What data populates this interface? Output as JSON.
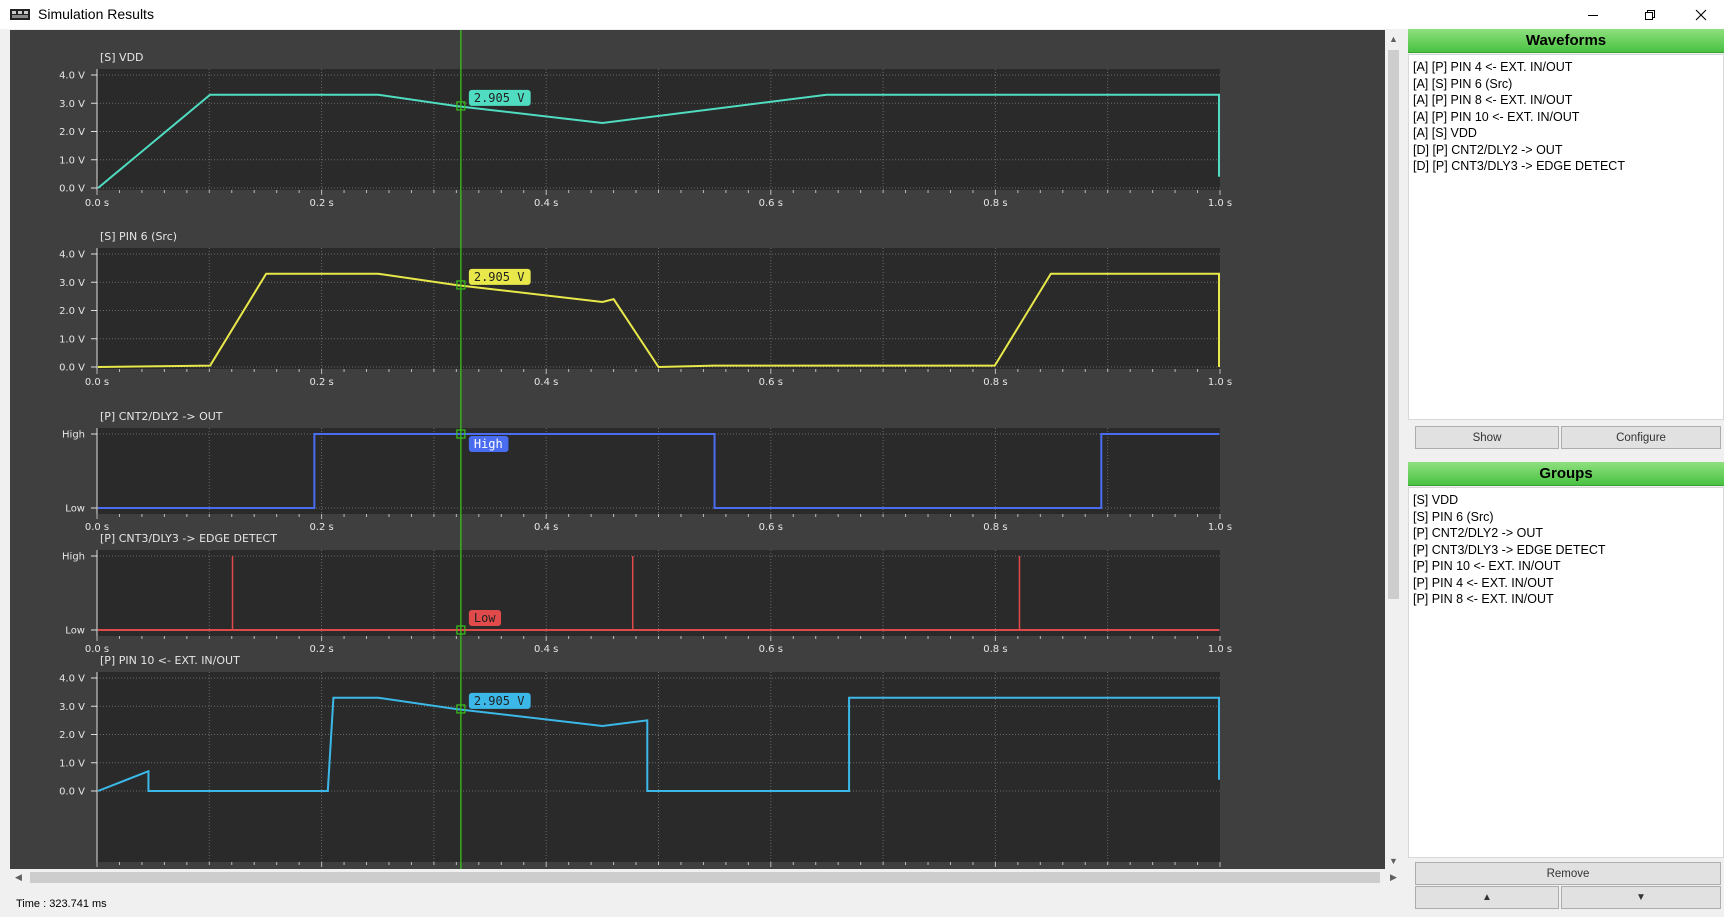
{
  "window": {
    "title": "Simulation Results",
    "icons": [
      "app-icon",
      "minimize-icon",
      "restore-icon",
      "close-icon"
    ]
  },
  "cursor": {
    "time_s": 0.3237,
    "status_label": "Time : 323.741 ms"
  },
  "colors": {
    "plot_bg": "#3f3f3f",
    "graph_bg": "#2a2a2a",
    "cursor": "#39c21a",
    "vdd": "#4fdcc0",
    "pin6": "#e8e84a",
    "cnt2": "#4a6cf0",
    "cnt3": "#e04a4a",
    "pin10": "#3cb8e8"
  },
  "plots": [
    {
      "title": "[S] VDD",
      "type": "analog",
      "color": "#4fdcc0",
      "y_ticks": [
        "4.0 V",
        "3.0 V",
        "2.0 V",
        "1.0 V",
        "0.0 V"
      ],
      "x_ticks": [
        "0.0 s",
        "0.2 s",
        "0.4 s",
        "0.6 s",
        "0.8 s",
        "1.0 s"
      ],
      "cursor_label": "2.905 V",
      "points": [
        [
          0,
          0
        ],
        [
          0.1,
          3.3
        ],
        [
          0.25,
          3.3
        ],
        [
          0.32,
          2.9
        ],
        [
          0.45,
          2.3
        ],
        [
          0.65,
          3.3
        ],
        [
          1.0,
          3.3
        ],
        [
          1.0,
          0.4
        ]
      ]
    },
    {
      "title": "[S] PIN 6 (Src)",
      "type": "analog",
      "color": "#e8e84a",
      "y_ticks": [
        "4.0 V",
        "3.0 V",
        "2.0 V",
        "1.0 V",
        "0.0 V"
      ],
      "x_ticks": [
        "0.0 s",
        "0.2 s",
        "0.4 s",
        "0.6 s",
        "0.8 s",
        "1.0 s"
      ],
      "cursor_label": "2.905 V",
      "points": [
        [
          0,
          0
        ],
        [
          0.1,
          0.05
        ],
        [
          0.15,
          3.3
        ],
        [
          0.25,
          3.3
        ],
        [
          0.32,
          2.9
        ],
        [
          0.45,
          2.3
        ],
        [
          0.46,
          2.4
        ],
        [
          0.5,
          0
        ],
        [
          0.55,
          0.05
        ],
        [
          0.8,
          0.05
        ],
        [
          0.85,
          3.3
        ],
        [
          1.0,
          3.3
        ],
        [
          1.0,
          1.6
        ],
        [
          1.0,
          0
        ]
      ]
    },
    {
      "title": "[P] CNT2/DLY2 -> OUT",
      "type": "digital",
      "color": "#4a6cf0",
      "y_ticks": [
        "High",
        "Low"
      ],
      "x_ticks": [
        "0.0 s",
        "0.2 s",
        "0.4 s",
        "0.6 s",
        "0.8 s",
        "1.0 s"
      ],
      "cursor_label": "High",
      "edges": [
        [
          0,
          0
        ],
        [
          0.193,
          1
        ],
        [
          0.55,
          0
        ],
        [
          0.895,
          1
        ],
        [
          1.0,
          1
        ]
      ]
    },
    {
      "title": "[P] CNT3/DLY3 -> EDGE DETECT",
      "type": "digital",
      "color": "#e04a4a",
      "y_ticks": [
        "High",
        "Low"
      ],
      "x_ticks": [
        "0.0 s",
        "0.2 s",
        "0.4 s",
        "0.6 s",
        "0.8 s",
        "1.0 s"
      ],
      "cursor_label": "Low",
      "spikes": [
        0.12,
        0.477,
        0.822
      ]
    },
    {
      "title": "[P] PIN 10 <- EXT. IN/OUT",
      "type": "analog",
      "color": "#3cb8e8",
      "y_ticks": [
        "4.0 V",
        "3.0 V",
        "2.0 V",
        "1.0 V",
        "0.0 V"
      ],
      "x_ticks": [
        "0.0 s",
        "0.2 s",
        "0.4 s",
        "0.6 s",
        "0.8 s",
        "1.0 s"
      ],
      "cursor_label": "2.905 V",
      "points": [
        [
          0,
          0
        ],
        [
          0.045,
          0.7
        ],
        [
          0.045,
          0
        ],
        [
          0.205,
          0
        ],
        [
          0.21,
          3.3
        ],
        [
          0.25,
          3.3
        ],
        [
          0.32,
          2.9
        ],
        [
          0.45,
          2.3
        ],
        [
          0.49,
          2.5
        ],
        [
          0.49,
          0
        ],
        [
          0.67,
          0
        ],
        [
          0.67,
          3.3
        ],
        [
          0.83,
          3.3
        ],
        [
          1.0,
          3.3
        ],
        [
          1.0,
          0.4
        ]
      ]
    }
  ],
  "waveforms": {
    "header": "Waveforms",
    "items": [
      "[A] [P] PIN 4 <- EXT. IN/OUT",
      "[A] [S] PIN 6 (Src)",
      "[A] [P] PIN 8 <- EXT. IN/OUT",
      "[A] [P] PIN 10 <- EXT. IN/OUT",
      "[A] [S] VDD",
      "[D] [P] CNT2/DLY2 -> OUT",
      "[D] [P] CNT3/DLY3 -> EDGE DETECT"
    ],
    "show_label": "Show",
    "configure_label": "Configure"
  },
  "groups": {
    "header": "Groups",
    "items": [
      "[S] VDD",
      "[S] PIN 6 (Src)",
      "[P] CNT2/DLY2 -> OUT",
      "[P] CNT3/DLY3 -> EDGE DETECT",
      "[P] PIN 10 <- EXT. IN/OUT",
      "[P] PIN 4 <- EXT. IN/OUT",
      "[P] PIN 8 <- EXT. IN/OUT"
    ],
    "remove_label": "Remove",
    "up_label": "▲",
    "down_label": "▼"
  }
}
